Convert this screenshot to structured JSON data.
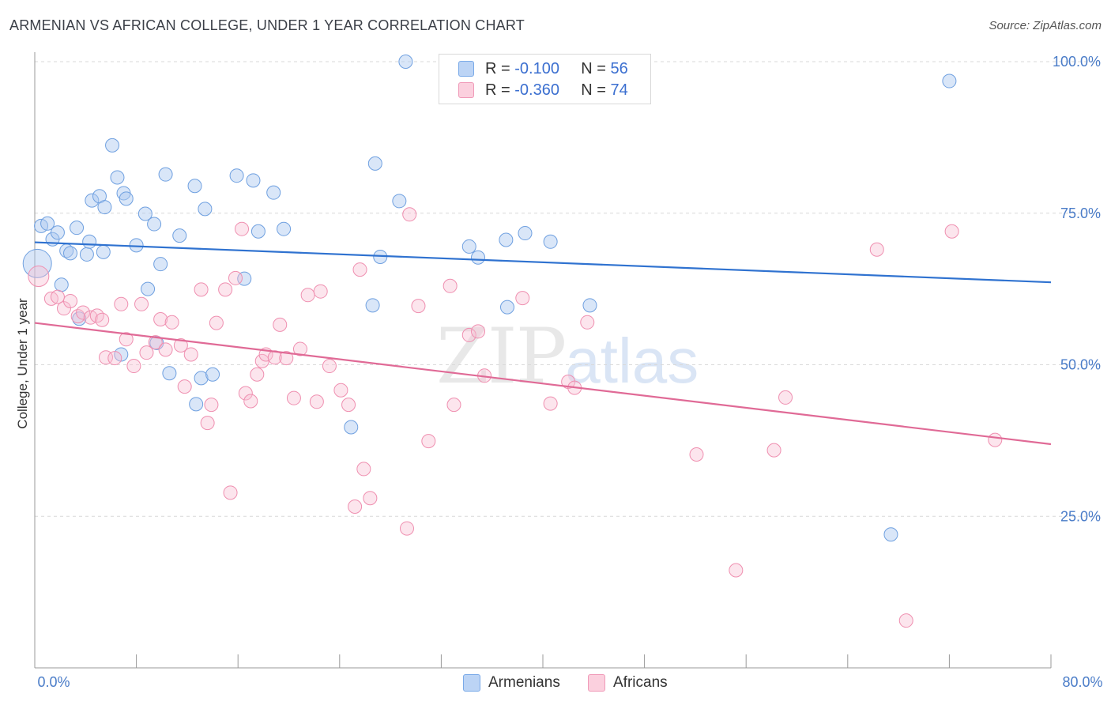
{
  "title": "ARMENIAN VS AFRICAN COLLEGE, UNDER 1 YEAR CORRELATION CHART",
  "source": "Source: ZipAtlas.com",
  "watermark": {
    "zip": "ZIP",
    "atlas": "atlas"
  },
  "legend": {
    "armenians": {
      "r_label": "R = ",
      "r_value": "-0.100",
      "n_label": "N = ",
      "n_value": "56"
    },
    "africans": {
      "r_label": "R = ",
      "r_value": "-0.360",
      "n_label": "N = ",
      "n_value": "74"
    }
  },
  "bottom_legend": {
    "armenians": "Armenians",
    "africans": "Africans"
  },
  "chart_data": {
    "type": "scatter",
    "title": "ARMENIAN VS AFRICAN COLLEGE, UNDER 1 YEAR CORRELATION CHART",
    "xlabel": "",
    "ylabel": "College, Under 1 year",
    "xlim": [
      0,
      80
    ],
    "ylim": [
      0,
      100
    ],
    "x_tick_labels": [
      "0.0%",
      "80.0%"
    ],
    "y_tick_labels": [
      "100.0%",
      "75.0%",
      "50.0%",
      "25.0%"
    ],
    "y_ticks": [
      100,
      75,
      50,
      25
    ],
    "grid": true,
    "legend_position": "top-center",
    "colors": {
      "armenians": "#7aaae8",
      "africans": "#f09ab8",
      "armenians_line": "#2f72d0",
      "africans_line": "#e06a96"
    },
    "series": [
      {
        "name": "Armenians",
        "trend": {
          "x0": 0,
          "y0": 70.2,
          "x1": 80,
          "y1": 63.6
        },
        "points": [
          [
            0.2,
            66.7
          ],
          [
            0.5,
            72.9
          ],
          [
            1.0,
            73.3
          ],
          [
            1.4,
            70.7
          ],
          [
            1.8,
            71.8
          ],
          [
            2.1,
            63.2
          ],
          [
            2.5,
            68.8
          ],
          [
            2.8,
            68.4
          ],
          [
            3.3,
            72.6
          ],
          [
            3.5,
            57.6
          ],
          [
            4.1,
            68.2
          ],
          [
            4.3,
            70.3
          ],
          [
            4.5,
            77.1
          ],
          [
            5.1,
            77.8
          ],
          [
            5.4,
            68.6
          ],
          [
            5.5,
            76.0
          ],
          [
            6.1,
            86.2
          ],
          [
            6.5,
            80.9
          ],
          [
            6.8,
            51.7
          ],
          [
            7.0,
            78.3
          ],
          [
            7.2,
            77.4
          ],
          [
            8.0,
            69.7
          ],
          [
            8.7,
            74.9
          ],
          [
            8.9,
            62.5
          ],
          [
            9.4,
            73.2
          ],
          [
            9.6,
            53.6
          ],
          [
            9.9,
            66.6
          ],
          [
            10.3,
            81.4
          ],
          [
            10.6,
            48.6
          ],
          [
            11.4,
            71.3
          ],
          [
            12.6,
            79.5
          ],
          [
            12.7,
            43.5
          ],
          [
            13.1,
            47.8
          ],
          [
            13.4,
            75.7
          ],
          [
            14.0,
            48.4
          ],
          [
            15.9,
            81.2
          ],
          [
            16.5,
            64.2
          ],
          [
            17.2,
            80.4
          ],
          [
            17.6,
            72.0
          ],
          [
            18.8,
            78.4
          ],
          [
            19.6,
            72.4
          ],
          [
            24.9,
            39.7
          ],
          [
            26.6,
            59.8
          ],
          [
            26.8,
            83.2
          ],
          [
            27.2,
            67.8
          ],
          [
            28.7,
            77.0
          ],
          [
            29.2,
            100.0
          ],
          [
            34.2,
            69.5
          ],
          [
            34.9,
            67.7
          ],
          [
            37.1,
            70.6
          ],
          [
            37.2,
            59.5
          ],
          [
            38.6,
            71.7
          ],
          [
            40.6,
            70.3
          ],
          [
            43.7,
            59.8
          ],
          [
            67.4,
            22.0
          ],
          [
            72.0,
            96.8
          ]
        ]
      },
      {
        "name": "Africans",
        "trend": {
          "x0": 0,
          "y0": 56.9,
          "x1": 80,
          "y1": 36.9
        },
        "points": [
          [
            0.3,
            64.6
          ],
          [
            1.3,
            60.9
          ],
          [
            1.8,
            61.2
          ],
          [
            2.3,
            59.3
          ],
          [
            2.8,
            60.5
          ],
          [
            3.4,
            58.0
          ],
          [
            3.8,
            58.6
          ],
          [
            4.4,
            57.8
          ],
          [
            4.9,
            58.1
          ],
          [
            5.3,
            57.4
          ],
          [
            5.6,
            51.2
          ],
          [
            6.3,
            51.1
          ],
          [
            6.8,
            60.0
          ],
          [
            7.2,
            54.2
          ],
          [
            7.8,
            49.8
          ],
          [
            8.4,
            60.0
          ],
          [
            8.8,
            52.0
          ],
          [
            9.5,
            53.7
          ],
          [
            9.9,
            57.5
          ],
          [
            10.3,
            52.5
          ],
          [
            10.8,
            57.0
          ],
          [
            11.5,
            53.2
          ],
          [
            11.8,
            46.4
          ],
          [
            12.3,
            51.7
          ],
          [
            13.1,
            62.4
          ],
          [
            13.6,
            40.4
          ],
          [
            13.9,
            43.4
          ],
          [
            14.3,
            56.9
          ],
          [
            15.0,
            62.4
          ],
          [
            15.4,
            28.9
          ],
          [
            15.8,
            64.3
          ],
          [
            16.3,
            72.4
          ],
          [
            16.6,
            45.3
          ],
          [
            17.0,
            44.0
          ],
          [
            17.5,
            48.4
          ],
          [
            17.9,
            50.6
          ],
          [
            18.2,
            51.7
          ],
          [
            18.9,
            51.2
          ],
          [
            19.3,
            56.6
          ],
          [
            19.8,
            51.1
          ],
          [
            20.4,
            44.5
          ],
          [
            20.9,
            52.6
          ],
          [
            21.5,
            61.5
          ],
          [
            22.2,
            43.9
          ],
          [
            22.5,
            62.1
          ],
          [
            23.2,
            49.8
          ],
          [
            24.1,
            45.8
          ],
          [
            24.7,
            43.4
          ],
          [
            25.2,
            26.6
          ],
          [
            25.6,
            65.7
          ],
          [
            25.9,
            32.8
          ],
          [
            26.4,
            28.0
          ],
          [
            29.3,
            23.0
          ],
          [
            29.5,
            74.8
          ],
          [
            30.2,
            59.7
          ],
          [
            31.0,
            37.4
          ],
          [
            32.7,
            63.0
          ],
          [
            33.0,
            43.4
          ],
          [
            34.2,
            54.9
          ],
          [
            34.9,
            55.5
          ],
          [
            35.4,
            48.2
          ],
          [
            38.4,
            61.0
          ],
          [
            40.6,
            43.6
          ],
          [
            42.0,
            47.2
          ],
          [
            42.5,
            46.2
          ],
          [
            43.5,
            57.0
          ],
          [
            52.1,
            35.2
          ],
          [
            55.2,
            16.1
          ],
          [
            58.2,
            35.9
          ],
          [
            59.1,
            44.6
          ],
          [
            66.3,
            69.0
          ],
          [
            68.6,
            7.8
          ],
          [
            72.2,
            72.0
          ],
          [
            75.6,
            37.6
          ]
        ]
      }
    ]
  }
}
